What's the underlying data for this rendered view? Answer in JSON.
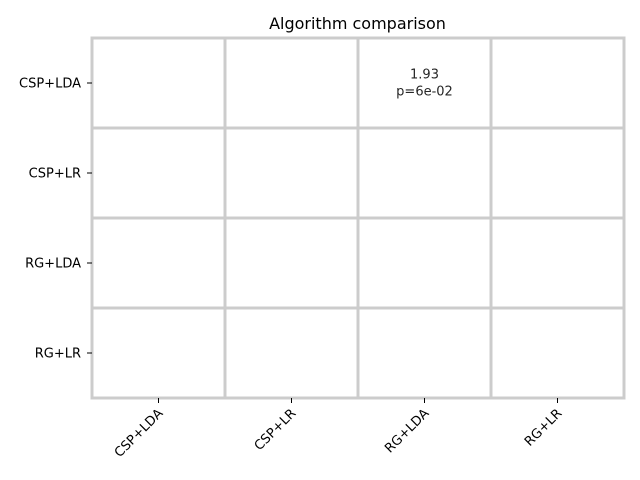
{
  "chart_data": {
    "type": "heatmap",
    "title": "Algorithm comparison",
    "rows": [
      "CSP+LDA",
      "CSP+LR",
      "RG+LDA",
      "RG+LR"
    ],
    "columns": [
      "CSP+LDA",
      "CSP+LR",
      "RG+LDA",
      "RG+LR"
    ],
    "cells": [
      {
        "row": "CSP+LDA",
        "column": "RG+LDA",
        "value": 1.93,
        "value_label": "1.93",
        "p_label": "p=6e-02"
      }
    ],
    "colors": {
      "background": "#ffffff",
      "grid": "#cccccc",
      "axis": "#000000",
      "annotation": "#262626"
    },
    "grid": true,
    "legend": "none"
  }
}
